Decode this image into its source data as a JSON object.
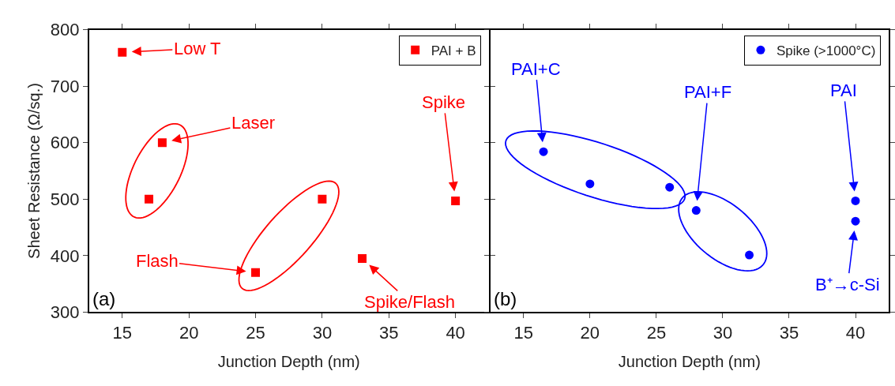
{
  "chart_data": [
    {
      "type": "scatter",
      "xlabel": "Junction Depth (nm)",
      "ylabel": "Sheet Resistance (Ω/sq.)",
      "xlim": [
        12.5,
        42.5
      ],
      "xticks": [
        15,
        20,
        25,
        30,
        35,
        40
      ],
      "ylim": [
        300,
        800
      ],
      "yticks": [
        300,
        400,
        500,
        600,
        700,
        800
      ],
      "grid": false,
      "marker": "square",
      "legend": "top right",
      "series": [
        {
          "name": "PAI + B",
          "color": "#ff0000",
          "x": [
            15,
            17,
            18,
            25,
            30,
            33,
            40
          ],
          "values": [
            760,
            500,
            600,
            370,
            500,
            395,
            497
          ]
        }
      ],
      "annotations": [
        {
          "text": "Low T",
          "x": 15,
          "y": 760
        },
        {
          "text": "Laser",
          "x": 18,
          "y": 600
        },
        {
          "text": "Flash",
          "x": 25,
          "y": 370
        },
        {
          "text": "Spike/Flash",
          "x": 33,
          "y": 395
        },
        {
          "text": "Spike",
          "x": 40,
          "y": 497
        },
        "(a)"
      ]
    },
    {
      "type": "scatter",
      "xlabel": "Junction Depth (nm)",
      "xlim": [
        12.5,
        42.5
      ],
      "xticks": [
        15,
        20,
        25,
        30,
        35,
        40
      ],
      "ylim": [
        300,
        800
      ],
      "yticks": [
        300,
        400,
        500,
        600,
        700,
        800
      ],
      "tick_labels": "x",
      "grid": false,
      "marker": "circle",
      "legend": "top right",
      "series": [
        {
          "name": "Spike (>1000°C)",
          "color": "#0000ff",
          "x": [
            16.5,
            20,
            26,
            28,
            32,
            40,
            40
          ],
          "values": [
            584,
            527,
            521,
            480,
            401,
            497,
            461
          ]
        }
      ],
      "annotations": [
        {
          "text": "PAI+C",
          "x": 16.5,
          "y": 584
        },
        {
          "text": "PAI+F",
          "x": 28,
          "y": 480
        },
        {
          "text": "PAI",
          "x": 40,
          "y": 497
        },
        {
          "text": "B⁺→c-Si",
          "x": 40,
          "y": 461
        },
        "(b)"
      ]
    }
  ]
}
